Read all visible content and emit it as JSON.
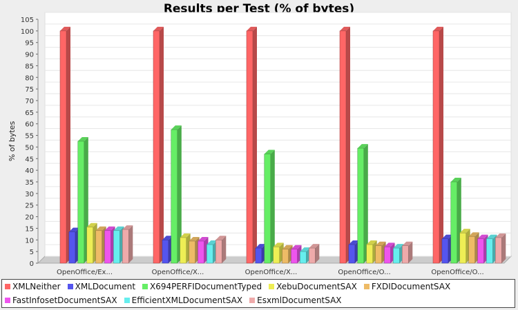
{
  "chart_data": {
    "type": "bar",
    "title": "Results per Test (% of bytes)",
    "xlabel": "",
    "ylabel": "% of bytes",
    "ylim": [
      0,
      105
    ],
    "yticks": [
      0,
      5,
      10,
      15,
      20,
      25,
      30,
      35,
      40,
      45,
      50,
      55,
      60,
      65,
      70,
      75,
      80,
      85,
      90,
      95,
      100,
      105
    ],
    "grid": true,
    "legend_position": "bottom",
    "categories": [
      "OpenOffice/Ex...",
      "OpenOffice/X...",
      "OpenOffice/X...",
      "OpenOffice/O...",
      "OpenOffice/O..."
    ],
    "series": [
      {
        "name": "XMLNeither",
        "color": "#ff6666",
        "values": [
          100,
          100,
          100,
          100,
          100
        ]
      },
      {
        "name": "XMLDocument",
        "color": "#5555ee",
        "values": [
          13.5,
          10,
          6.5,
          8,
          10.5
        ]
      },
      {
        "name": "X694PERFIDocumentTyped",
        "color": "#66ee66",
        "values": [
          52.5,
          57.5,
          47,
          49.5,
          35
        ]
      },
      {
        "name": "XebuDocumentSAX",
        "color": "#eeee55",
        "values": [
          15.5,
          11,
          7,
          8,
          13
        ]
      },
      {
        "name": "FXDIDocumentSAX",
        "color": "#eebb66",
        "values": [
          14,
          9.5,
          6,
          7.5,
          11.5
        ]
      },
      {
        "name": "FastInfosetDocumentSAX",
        "color": "#ee55ee",
        "values": [
          14,
          9.5,
          6,
          7,
          10.5
        ]
      },
      {
        "name": "EfficientXMLDocumentSAX",
        "color": "#66eeee",
        "values": [
          14,
          8,
          5,
          6.5,
          10.5
        ]
      },
      {
        "name": "EsxmlDocumentSAX",
        "color": "#eeaaaa",
        "values": [
          14.5,
          10,
          6.5,
          7.5,
          11
        ]
      }
    ]
  }
}
